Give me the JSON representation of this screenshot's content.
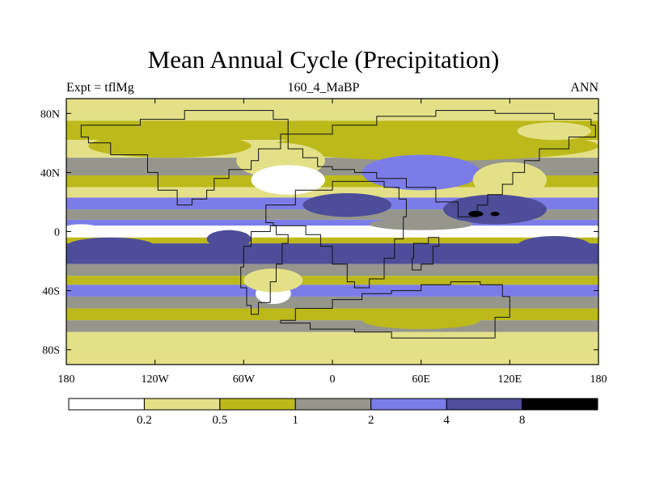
{
  "chart_data": {
    "type": "heatmap",
    "title": "Mean Annual Cycle (Precipitation)",
    "left_string": "Expt = tflMg",
    "center_string": "160_4_MaBP",
    "right_string": "ANN",
    "x_ticks": [
      {
        "value": -180,
        "label": "180"
      },
      {
        "value": -120,
        "label": "120W"
      },
      {
        "value": -60,
        "label": "60W"
      },
      {
        "value": 0,
        "label": "0"
      },
      {
        "value": 60,
        "label": "60E"
      },
      {
        "value": 120,
        "label": "120E"
      },
      {
        "value": 180,
        "label": "180"
      }
    ],
    "y_ticks": [
      {
        "value": 80,
        "label": "80N"
      },
      {
        "value": 40,
        "label": "40N"
      },
      {
        "value": 0,
        "label": "0"
      },
      {
        "value": -40,
        "label": "40S"
      },
      {
        "value": -80,
        "label": "80S"
      }
    ],
    "xlim": [
      -180,
      180
    ],
    "ylim": [
      -90,
      90
    ],
    "levels": [
      "0.2",
      "0.5",
      "1",
      "2",
      "4",
      "8"
    ],
    "colors": [
      "#ffffff",
      "#e3e088",
      "#bcb91b",
      "#96968c",
      "#7c7ce8",
      "#4d4d99",
      "#000000"
    ],
    "zonal_bands": [
      {
        "lat": [
          75,
          90
        ],
        "bin": 1
      },
      {
        "lat": [
          62,
          75
        ],
        "bin": 2
      },
      {
        "lat": [
          50,
          62
        ],
        "bin": 1
      },
      {
        "lat": [
          38,
          50
        ],
        "bin": 3
      },
      {
        "lat": [
          30,
          38
        ],
        "bin": 2
      },
      {
        "lat": [
          23,
          30
        ],
        "bin": 1
      },
      {
        "lat": [
          15,
          23
        ],
        "bin": 4
      },
      {
        "lat": [
          8,
          15
        ],
        "bin": 3
      },
      {
        "lat": [
          4,
          8
        ],
        "bin": 4
      },
      {
        "lat": [
          -4,
          4
        ],
        "bin": 0
      },
      {
        "lat": [
          -8,
          -4
        ],
        "bin": 2
      },
      {
        "lat": [
          -22,
          -8
        ],
        "bin": 5
      },
      {
        "lat": [
          -30,
          -22
        ],
        "bin": 3
      },
      {
        "lat": [
          -36,
          -30
        ],
        "bin": 2
      },
      {
        "lat": [
          -44,
          -36
        ],
        "bin": 4
      },
      {
        "lat": [
          -52,
          -44
        ],
        "bin": 3
      },
      {
        "lat": [
          -60,
          -52
        ],
        "bin": 2
      },
      {
        "lat": [
          -68,
          -60
        ],
        "bin": 3
      },
      {
        "lat": [
          -76,
          -68
        ],
        "bin": 1
      },
      {
        "lat": [
          -90,
          -76
        ],
        "bin": 1
      }
    ],
    "regional_patches": [
      {
        "lon": 70,
        "lat": 58,
        "rx": 110,
        "ry": 10,
        "bin": 2
      },
      {
        "lon": -110,
        "lat": 58,
        "rx": 55,
        "ry": 8,
        "bin": 2
      },
      {
        "lon": -35,
        "lat": 48,
        "rx": 30,
        "ry": 12,
        "bin": 1
      },
      {
        "lon": -30,
        "lat": 35,
        "rx": 25,
        "ry": 10,
        "bin": 0
      },
      {
        "lon": 60,
        "lat": 40,
        "rx": 40,
        "ry": 12,
        "bin": 4
      },
      {
        "lon": 120,
        "lat": 35,
        "rx": 25,
        "ry": 12,
        "bin": 1
      },
      {
        "lon": 110,
        "lat": 15,
        "rx": 35,
        "ry": 10,
        "bin": 5
      },
      {
        "lon": 10,
        "lat": 18,
        "rx": 30,
        "ry": 8,
        "bin": 5
      },
      {
        "lon": 97,
        "lat": 12,
        "rx": 5,
        "ry": 2,
        "bin": 6
      },
      {
        "lon": 110,
        "lat": 12,
        "rx": 3,
        "ry": 1.5,
        "bin": 6
      },
      {
        "lon": -40,
        "lat": -42,
        "rx": 12,
        "ry": 7,
        "bin": 0
      },
      {
        "lon": -40,
        "lat": -33,
        "rx": 20,
        "ry": 8,
        "bin": 1
      },
      {
        "lon": -70,
        "lat": -5,
        "rx": 15,
        "ry": 6,
        "bin": 5
      },
      {
        "lon": 150,
        "lat": -10,
        "rx": 25,
        "ry": 7,
        "bin": 5
      },
      {
        "lon": -150,
        "lat": -10,
        "rx": 30,
        "ry": 6,
        "bin": 5
      },
      {
        "lon": 60,
        "lat": -60,
        "rx": 40,
        "ry": 6,
        "bin": 2
      },
      {
        "lon": 150,
        "lat": 68,
        "rx": 25,
        "ry": 6,
        "bin": 1
      },
      {
        "lon": -170,
        "lat": 2,
        "rx": 12,
        "ry": 3,
        "bin": 0
      },
      {
        "lon": 60,
        "lat": 5,
        "rx": 35,
        "ry": 4,
        "bin": 3
      }
    ]
  }
}
